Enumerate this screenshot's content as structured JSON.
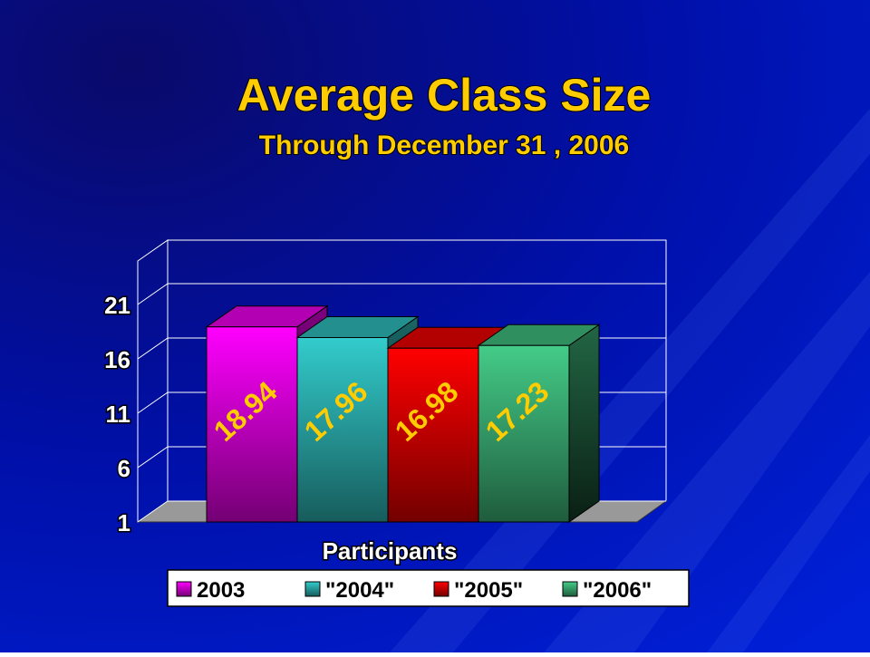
{
  "chart_data": {
    "type": "bar3d",
    "title": "Average Class Size",
    "subtitle": "Through December 31 , 2006",
    "x_label": "Participants",
    "series": [
      {
        "name": "2003",
        "color": "#ff00ff",
        "values": [
          18.94
        ]
      },
      {
        "name": "\"2004\"",
        "color": "#33cccc",
        "values": [
          17.96
        ]
      },
      {
        "name": "\"2005\"",
        "color": "#ff0000",
        "values": [
          16.98
        ]
      },
      {
        "name": "\"2006\"",
        "color": "#44cc88",
        "values": [
          17.23
        ]
      }
    ],
    "ylim": [
      1,
      25
    ],
    "yticks": [
      1,
      6,
      11,
      16,
      21
    ],
    "grid": true,
    "legend": "bottom"
  }
}
